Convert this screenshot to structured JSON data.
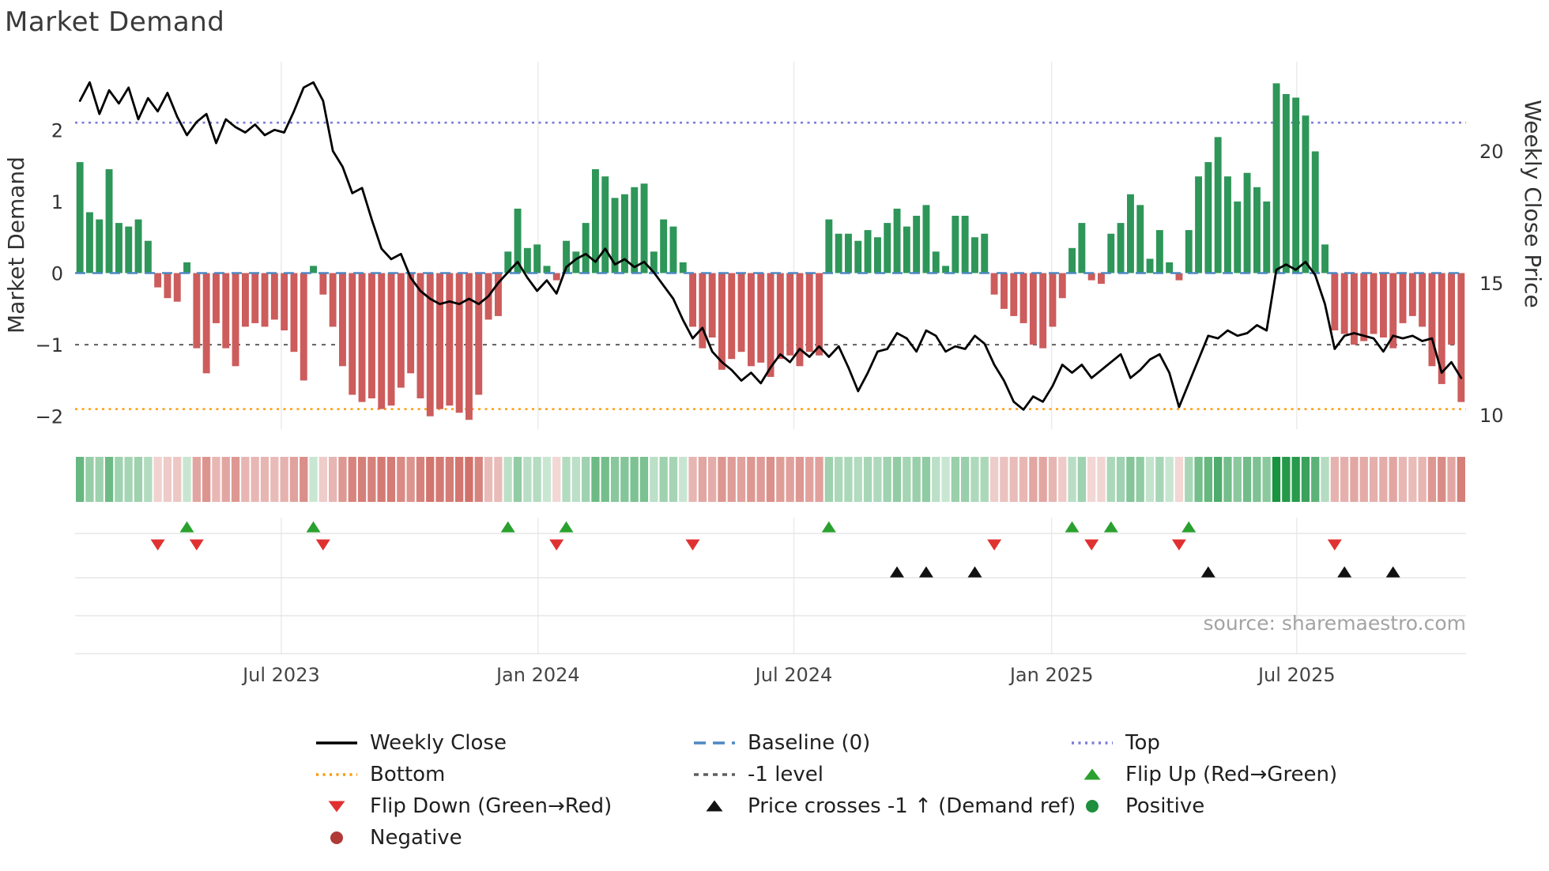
{
  "title": "Market Demand",
  "source": "source: sharemaestro.com",
  "axes": {
    "left_label": "Market Demand",
    "right_label": "Weekly Close Price",
    "left_ticks": [
      "−2",
      "−1",
      "0",
      "1",
      "2"
    ],
    "left_tick_values": [
      -2,
      -1,
      0,
      1,
      2
    ],
    "right_ticks": [
      "10",
      "15",
      "20"
    ],
    "right_tick_values": [
      10,
      15,
      20
    ],
    "x_ticks": [
      "Jul 2023",
      "Jan 2024",
      "Jul 2024",
      "Jan 2025",
      "Jul 2025"
    ],
    "x_tick_weeks": [
      20.7,
      47.1,
      73.4,
      99.9,
      125.1
    ]
  },
  "colors": {
    "bar_positive": "#2e9658",
    "bar_negative": "#cd5c5c",
    "price_line": "#000000",
    "baseline": "#4d88c4",
    "top_line": "#7b7bdb",
    "bottom_line": "#ff9800",
    "minus_one_line": "#5f5f5f",
    "flip_up": "#2aa12e",
    "flip_down": "#e03131",
    "price_cross": "#111111",
    "positive_dot": "#1e8f3e",
    "negative_dot": "#b03a37"
  },
  "reference_lines": {
    "top": {
      "label": "Top",
      "value": 2.1
    },
    "baseline": {
      "label": "Baseline (0)",
      "value": 0
    },
    "minus_one": {
      "label": "-1 level",
      "value": -1
    },
    "bottom": {
      "label": "Bottom",
      "value": -1.9
    }
  },
  "legend": [
    {
      "label": "Weekly Close",
      "icon": "line-solid",
      "color": "#000000"
    },
    {
      "label": "Baseline (0)",
      "icon": "line-dashed",
      "color": "#4d88c4"
    },
    {
      "label": "Top",
      "icon": "line-dotted",
      "color": "#7b7bdb"
    },
    {
      "label": "Bottom",
      "icon": "line-dotted",
      "color": "#ff9800"
    },
    {
      "label": "-1 level",
      "icon": "line-dashed-small",
      "color": "#5f5f5f"
    },
    {
      "label": "Flip Up (Red→Green)",
      "icon": "triangle-up",
      "color": "#2aa12e"
    },
    {
      "label": "Flip Down (Green→Red)",
      "icon": "triangle-down",
      "color": "#e03131"
    },
    {
      "label": "Price crosses -1 ↑ (Demand ref)",
      "icon": "triangle-up",
      "color": "#111111"
    },
    {
      "label": "Positive",
      "icon": "circle",
      "color": "#1e8f3e"
    },
    {
      "label": "Negative",
      "icon": "circle",
      "color": "#b03a37"
    }
  ],
  "chart_data": {
    "type": "bar+line",
    "title": "Market Demand",
    "frequency": "weekly",
    "x_range_labels": [
      "Jul 2023",
      "Jan 2024",
      "Jul 2024",
      "Jan 2025",
      "Jul 2025"
    ],
    "left_ylabel": "Market Demand",
    "right_ylabel": "Weekly Close Price",
    "left_ylim": [
      -2.2,
      2.95
    ],
    "right_ylim": [
      9.5,
      23.4
    ],
    "grid": true,
    "legend_position": "bottom",
    "demand": [
      1.55,
      0.85,
      0.75,
      1.45,
      0.7,
      0.65,
      0.75,
      0.45,
      -0.2,
      -0.35,
      -0.4,
      0.15,
      -1.05,
      -1.4,
      -0.7,
      -1.05,
      -1.3,
      -0.75,
      -0.7,
      -0.75,
      -0.65,
      -0.8,
      -1.1,
      -1.5,
      0.1,
      -0.3,
      -0.75,
      -1.3,
      -1.7,
      -1.8,
      -1.75,
      -1.9,
      -1.85,
      -1.6,
      -1.4,
      -1.75,
      -2.0,
      -1.9,
      -1.85,
      -1.95,
      -2.05,
      -1.7,
      -0.65,
      -0.6,
      0.3,
      0.9,
      0.35,
      0.4,
      0.1,
      -0.1,
      0.45,
      0.3,
      0.7,
      1.45,
      1.35,
      1.05,
      1.1,
      1.2,
      1.25,
      0.3,
      0.75,
      0.65,
      0.15,
      -0.75,
      -1.05,
      -0.9,
      -1.35,
      -1.2,
      -1.1,
      -1.3,
      -1.25,
      -1.45,
      -1.2,
      -1.15,
      -1.3,
      -1.1,
      -1.15,
      0.75,
      0.55,
      0.55,
      0.45,
      0.6,
      0.5,
      0.7,
      0.9,
      0.65,
      0.8,
      0.95,
      0.3,
      0.1,
      0.8,
      0.8,
      0.5,
      0.55,
      -0.3,
      -0.5,
      -0.6,
      -0.7,
      -1.0,
      -1.05,
      -0.75,
      -0.35,
      0.35,
      0.7,
      -0.1,
      -0.15,
      0.55,
      0.7,
      1.1,
      0.95,
      0.2,
      0.6,
      0.15,
      -0.1,
      0.6,
      1.35,
      1.55,
      1.9,
      1.35,
      1.0,
      1.4,
      1.2,
      1.0,
      2.65,
      2.5,
      2.45,
      2.2,
      1.7,
      0.4,
      -0.8,
      -0.85,
      -1.0,
      -0.95,
      -0.85,
      -0.9,
      -1.05,
      -0.7,
      -0.6,
      -0.75,
      -1.3,
      -1.55,
      -1.0,
      -1.8
    ],
    "price": [
      21.9,
      22.6,
      21.4,
      22.3,
      21.8,
      22.4,
      21.2,
      22.0,
      21.5,
      22.2,
      21.3,
      20.6,
      21.1,
      21.4,
      20.3,
      21.2,
      20.9,
      20.7,
      21.0,
      20.6,
      20.8,
      20.7,
      21.5,
      22.4,
      22.6,
      21.9,
      20.0,
      19.4,
      18.4,
      18.6,
      17.4,
      16.3,
      15.9,
      16.1,
      15.2,
      14.7,
      14.4,
      14.2,
      14.3,
      14.2,
      14.4,
      14.2,
      14.5,
      15.0,
      15.4,
      15.8,
      15.2,
      14.7,
      15.1,
      14.6,
      15.6,
      15.9,
      16.1,
      15.8,
      16.3,
      15.7,
      15.9,
      15.6,
      15.8,
      15.4,
      14.9,
      14.4,
      13.6,
      12.9,
      13.3,
      12.4,
      12.0,
      11.7,
      11.3,
      11.6,
      11.2,
      11.8,
      12.3,
      12.0,
      12.5,
      12.2,
      12.6,
      12.2,
      12.6,
      11.8,
      10.9,
      11.6,
      12.4,
      12.5,
      13.1,
      12.9,
      12.4,
      13.2,
      13.0,
      12.4,
      12.6,
      12.5,
      13.0,
      12.7,
      11.9,
      11.3,
      10.5,
      10.2,
      10.7,
      10.5,
      11.1,
      11.9,
      11.6,
      11.9,
      11.4,
      11.7,
      12.0,
      12.3,
      11.4,
      11.7,
      12.1,
      12.3,
      11.6,
      10.3,
      11.2,
      12.1,
      13.0,
      12.9,
      13.2,
      13.0,
      13.1,
      13.4,
      13.2,
      15.5,
      15.7,
      15.5,
      15.8,
      15.3,
      14.2,
      12.5,
      13.0,
      13.1,
      13.0,
      12.9,
      12.4,
      13.0,
      12.9,
      13.0,
      12.8,
      12.9,
      11.6,
      12.0,
      11.4
    ],
    "flip_up_weeks": [
      11,
      24,
      44,
      50,
      77,
      102,
      106,
      114
    ],
    "flip_down_weeks": [
      8,
      12,
      25,
      49,
      63,
      94,
      104,
      113,
      129
    ],
    "price_cross_weeks": [
      84,
      87,
      92,
      116,
      130,
      135
    ]
  }
}
